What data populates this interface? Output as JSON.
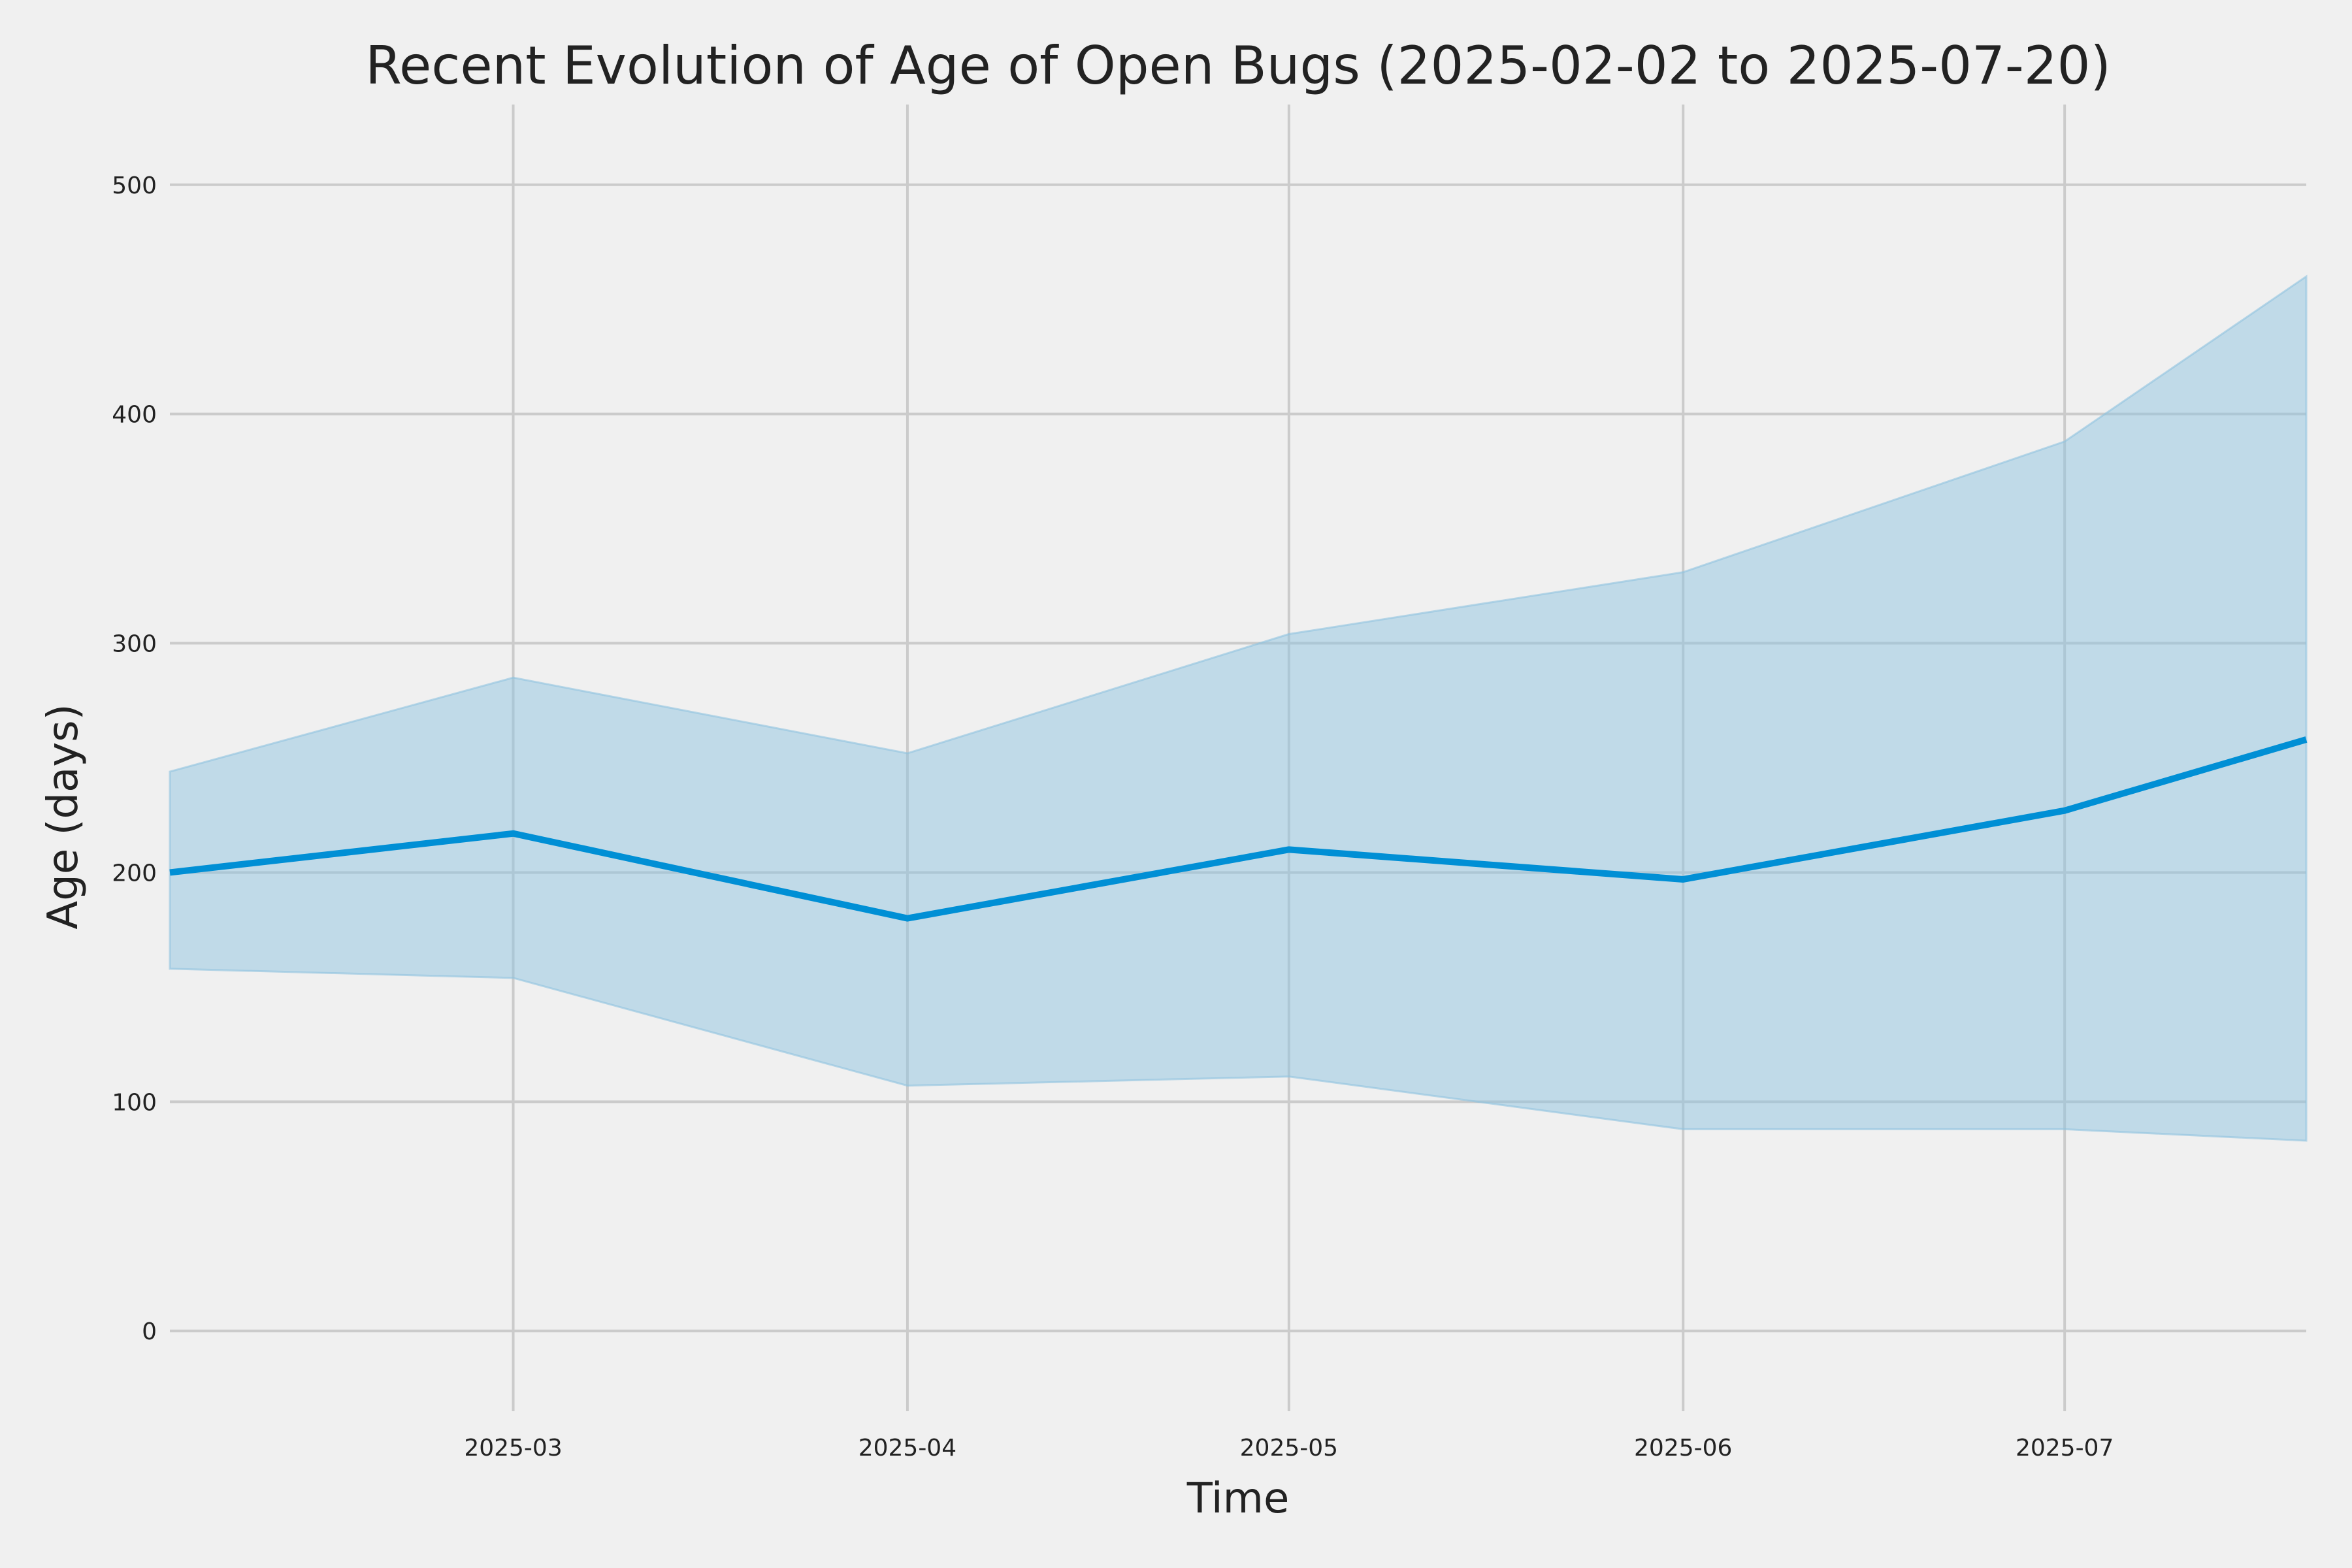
{
  "chart_data": {
    "type": "line",
    "title": "Recent Evolution of Age of Open Bugs (2025-02-02 to 2025-07-20)",
    "xlabel": "Time",
    "ylabel": "Age (days)",
    "xlim": [
      "2025-02-02",
      "2025-07-20"
    ],
    "ylim": [
      -35,
      535
    ],
    "x_ticks": [
      "2025-03-01",
      "2025-04-01",
      "2025-05-01",
      "2025-06-01",
      "2025-07-01"
    ],
    "x_tick_labels": [
      "2025-03",
      "2025-04",
      "2025-05",
      "2025-06",
      "2025-07"
    ],
    "y_ticks": [
      0,
      100,
      200,
      300,
      400,
      500
    ],
    "y_tick_labels": [
      "0",
      "100",
      "200",
      "300",
      "400",
      "500"
    ],
    "grid": true,
    "legend": "none",
    "colors": {
      "line": "#008fd5",
      "band": "#8fc3e0",
      "background": "#f0f0f0",
      "grid": "#cbcbcb"
    },
    "x": [
      "2025-02-02",
      "2025-03-01",
      "2025-04-01",
      "2025-05-01",
      "2025-06-01",
      "2025-07-01",
      "2025-07-20"
    ],
    "series": [
      {
        "role": "line",
        "values": [
          200,
          217,
          180,
          210,
          197,
          227,
          258
        ]
      },
      {
        "role": "band",
        "lower": [
          158,
          154,
          107,
          111,
          88,
          88,
          83
        ],
        "upper": [
          244,
          285,
          252,
          304,
          331,
          388,
          460
        ]
      }
    ]
  }
}
